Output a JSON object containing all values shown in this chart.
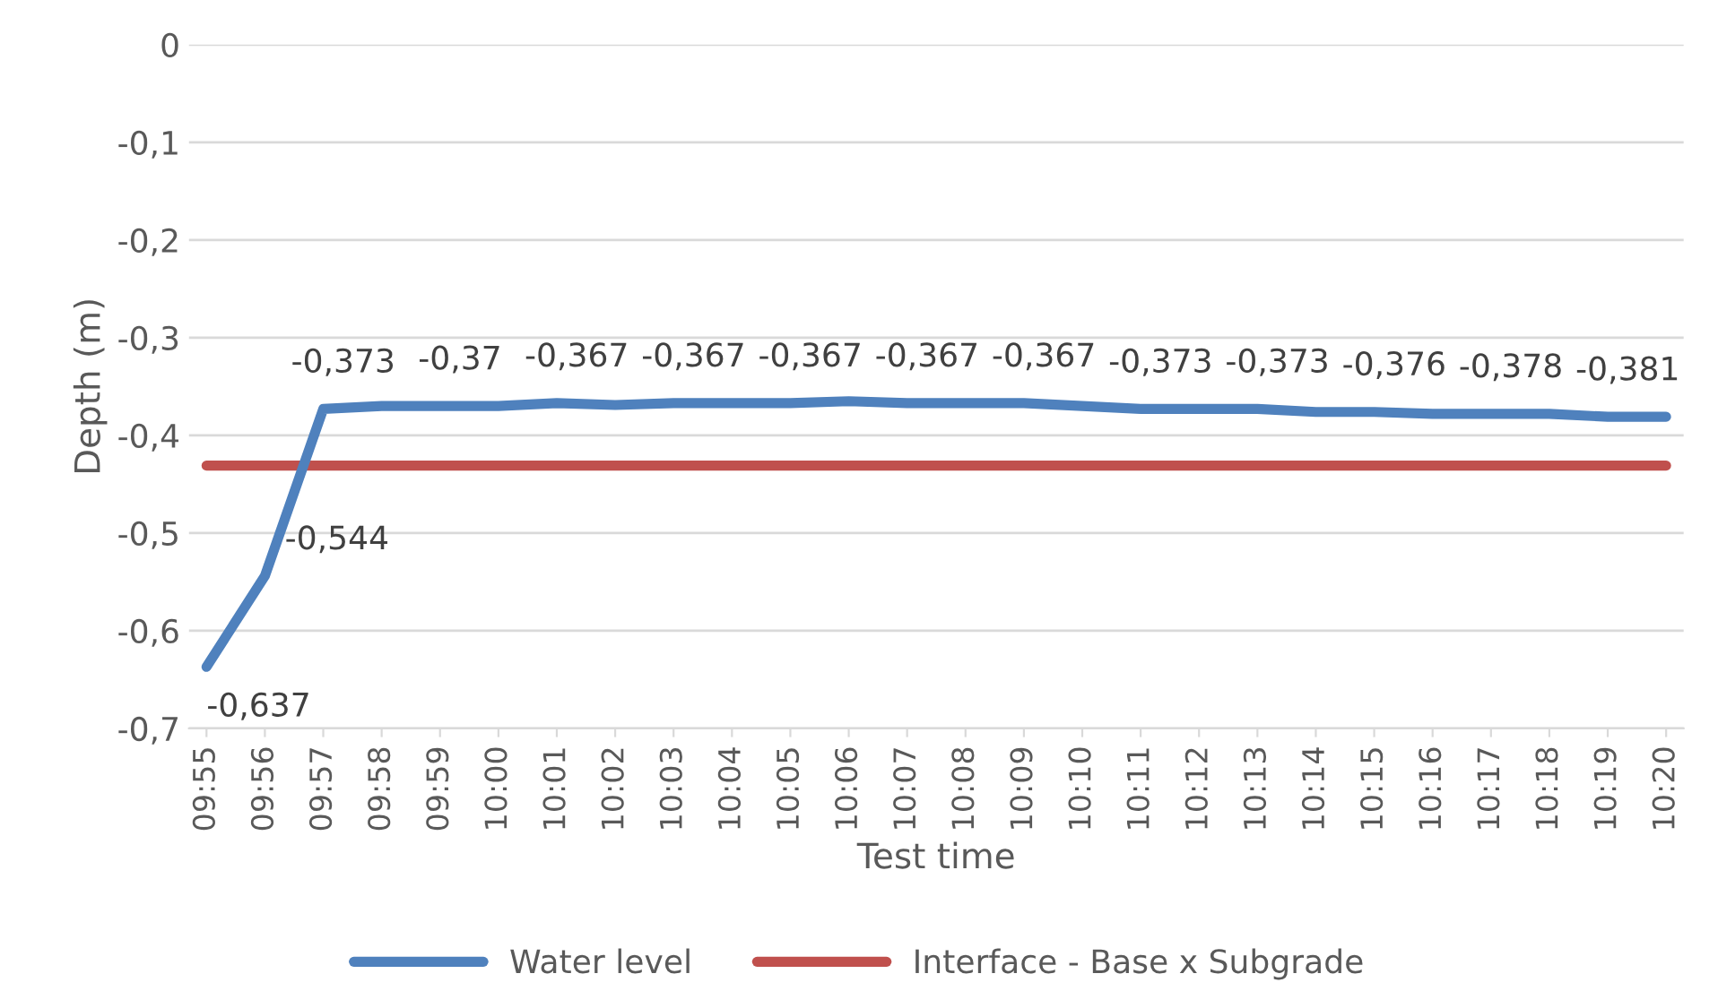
{
  "chart_data": {
    "type": "line",
    "xlabel": "Test time",
    "ylabel": "Depth (m)",
    "categories": [
      "09:55",
      "09:56",
      "09:57",
      "09:58",
      "09:59",
      "10:00",
      "10:01",
      "10:02",
      "10:03",
      "10:04",
      "10:05",
      "10:06",
      "10:07",
      "10:08",
      "10:09",
      "10:10",
      "10:11",
      "10:12",
      "10:13",
      "10:14",
      "10:15",
      "10:16",
      "10:17",
      "10:18",
      "10:19",
      "10:20"
    ],
    "series": [
      {
        "name": "Water level",
        "color": "#4f81bd",
        "values": [
          -0.637,
          -0.544,
          -0.373,
          -0.37,
          -0.37,
          -0.37,
          -0.367,
          -0.369,
          -0.367,
          -0.367,
          -0.367,
          -0.365,
          -0.367,
          -0.367,
          -0.367,
          -0.37,
          -0.373,
          -0.373,
          -0.373,
          -0.376,
          -0.376,
          -0.378,
          -0.378,
          -0.378,
          -0.381,
          -0.381
        ],
        "value_labels": [
          "-0,637",
          "-0,544",
          "-0,373",
          null,
          "-0,37",
          null,
          "-0,367",
          null,
          "-0,367",
          null,
          "-0,367",
          null,
          "-0,367",
          null,
          "-0,367",
          null,
          "-0,373",
          null,
          "-0,373",
          null,
          "-0,376",
          null,
          "-0,378",
          null,
          "-0,381",
          null
        ]
      },
      {
        "name": "Interface - Base x Subgrade",
        "color": "#c0504d",
        "values": [
          -0.431,
          -0.431,
          -0.431,
          -0.431,
          -0.431,
          -0.431,
          -0.431,
          -0.431,
          -0.431,
          -0.431,
          -0.431,
          -0.431,
          -0.431,
          -0.431,
          -0.431,
          -0.431,
          -0.431,
          -0.431,
          -0.431,
          -0.431,
          -0.431,
          -0.431,
          -0.431,
          -0.431,
          -0.431,
          -0.431
        ]
      }
    ],
    "ylim": [
      -0.7,
      0
    ],
    "yticks": [
      {
        "value": -0.7,
        "label": "-0,7"
      },
      {
        "value": -0.6,
        "label": "-0,6"
      },
      {
        "value": -0.5,
        "label": "-0,5"
      },
      {
        "value": -0.4,
        "label": "-0,4"
      },
      {
        "value": -0.3,
        "label": "-0,3"
      },
      {
        "value": -0.2,
        "label": "-0,2"
      },
      {
        "value": -0.1,
        "label": "-0,1"
      },
      0
    ],
    "grid": "y",
    "legend": "bottom",
    "marker": "none",
    "line_style": "solid"
  }
}
